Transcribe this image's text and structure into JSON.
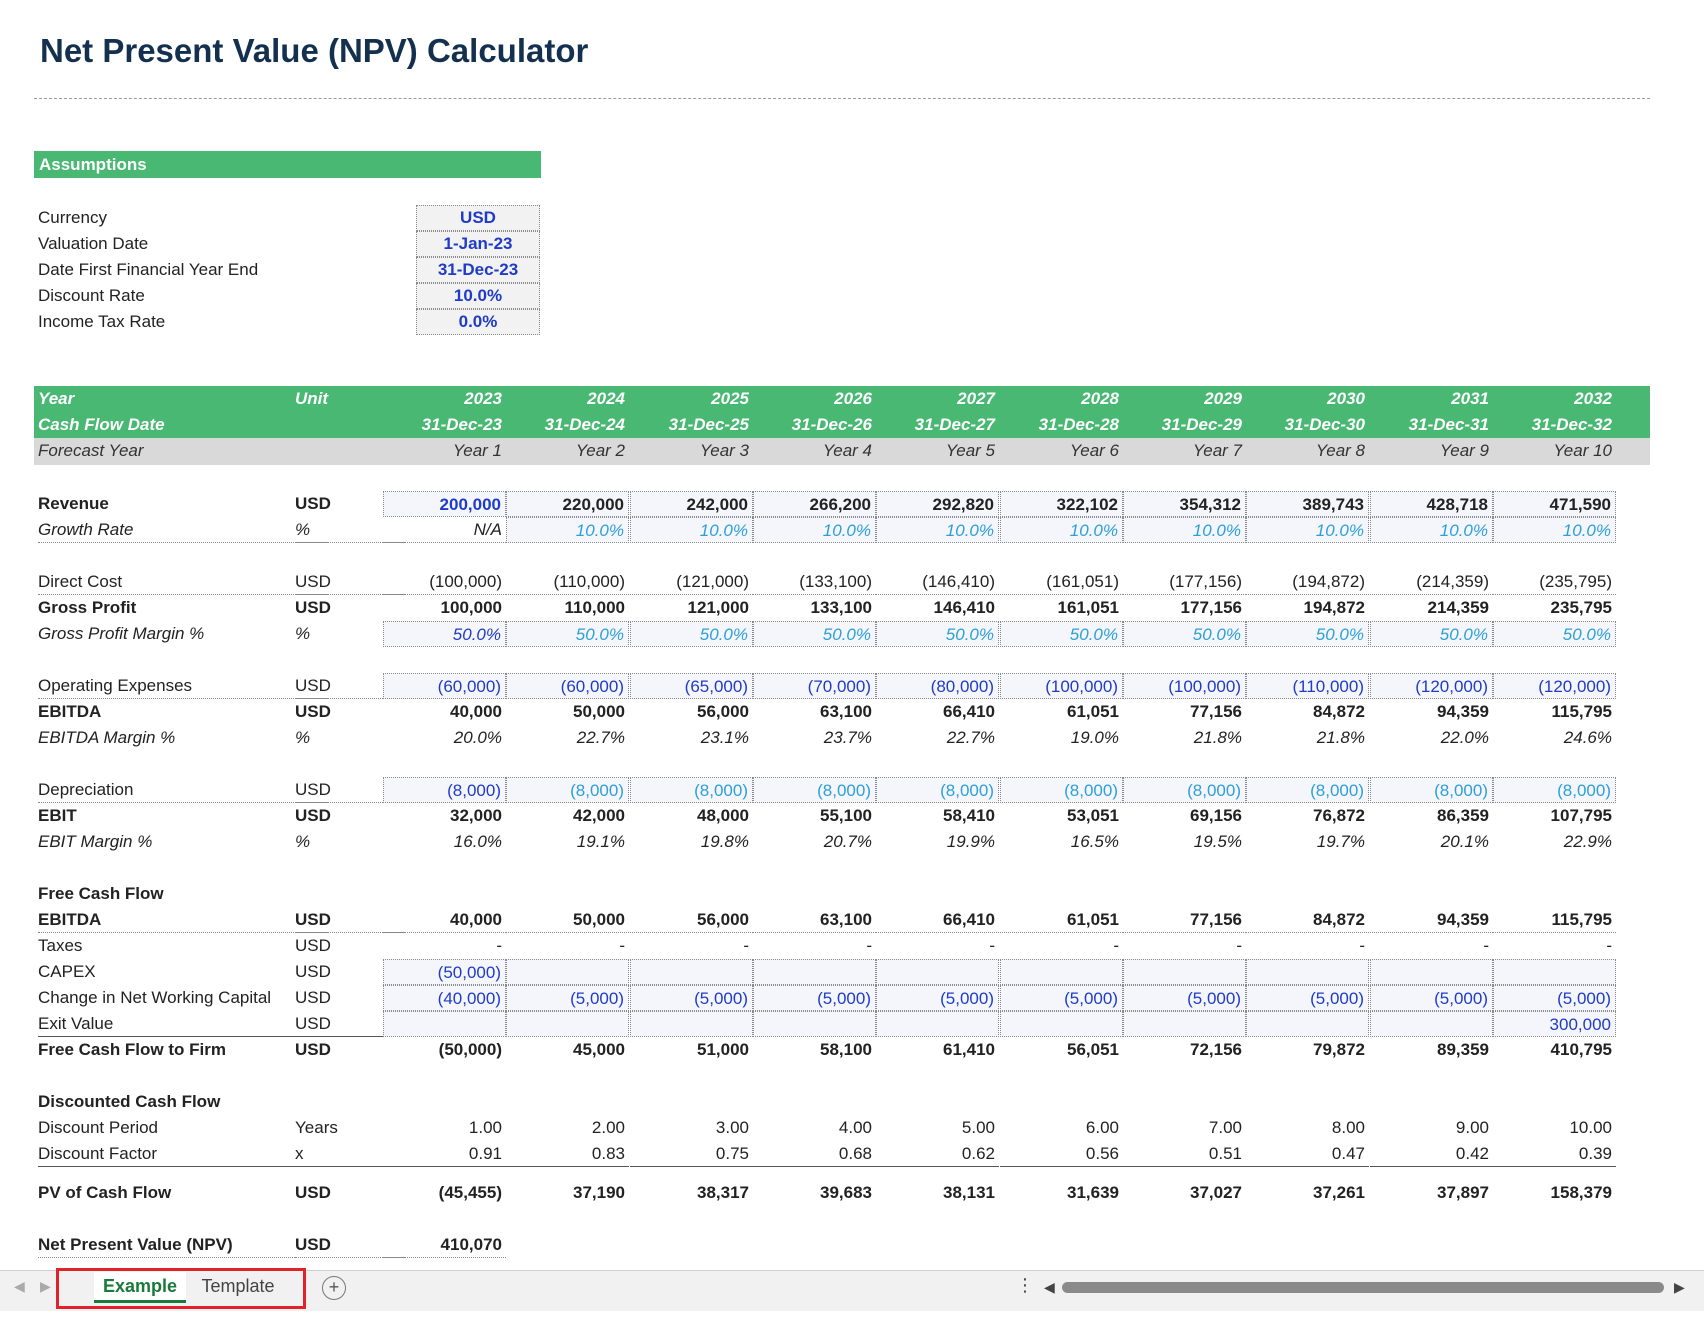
{
  "title": "Net Present Value (NPV) Calculator",
  "assumptions": {
    "header": "Assumptions",
    "items": [
      {
        "label": "Currency",
        "value": "USD"
      },
      {
        "label": "Valuation Date",
        "value": "1-Jan-23"
      },
      {
        "label": "Date First Financial Year End",
        "value": "31-Dec-23"
      },
      {
        "label": "Discount Rate",
        "value": "10.0%"
      },
      {
        "label": "Income Tax Rate",
        "value": "0.0%"
      }
    ]
  },
  "header_rows": [
    {
      "label": "Year",
      "unit": "Unit",
      "cells": [
        "2023",
        "2024",
        "2025",
        "2026",
        "2027",
        "2028",
        "2029",
        "2030",
        "2031",
        "2032"
      ]
    },
    {
      "label": "Cash Flow Date",
      "unit": "",
      "cells": [
        "31-Dec-23",
        "31-Dec-24",
        "31-Dec-25",
        "31-Dec-26",
        "31-Dec-27",
        "31-Dec-28",
        "31-Dec-29",
        "31-Dec-30",
        "31-Dec-31",
        "31-Dec-32"
      ]
    },
    {
      "label": "Forecast Year",
      "unit": "",
      "cells": [
        "Year 1",
        "Year 2",
        "Year 3",
        "Year 4",
        "Year 5",
        "Year 6",
        "Year 7",
        "Year 8",
        "Year 9",
        "Year 10"
      ]
    }
  ],
  "rows": [
    {
      "label": "Revenue",
      "unit": "USD",
      "cells": [
        "200,000",
        "220,000",
        "242,000",
        "266,200",
        "292,820",
        "322,102",
        "354,312",
        "389,743",
        "428,718",
        "471,590"
      ]
    },
    {
      "label": "Growth Rate",
      "unit": "%",
      "cells": [
        "N/A",
        "10.0%",
        "10.0%",
        "10.0%",
        "10.0%",
        "10.0%",
        "10.0%",
        "10.0%",
        "10.0%",
        "10.0%"
      ]
    },
    {
      "label": "Direct Cost",
      "unit": "USD",
      "cells": [
        "(100,000)",
        "(110,000)",
        "(121,000)",
        "(133,100)",
        "(146,410)",
        "(161,051)",
        "(177,156)",
        "(194,872)",
        "(214,359)",
        "(235,795)"
      ]
    },
    {
      "label": "Gross Profit",
      "unit": "USD",
      "cells": [
        "100,000",
        "110,000",
        "121,000",
        "133,100",
        "146,410",
        "161,051",
        "177,156",
        "194,872",
        "214,359",
        "235,795"
      ]
    },
    {
      "label": "Gross Profit Margin %",
      "unit": "%",
      "cells": [
        "50.0%",
        "50.0%",
        "50.0%",
        "50.0%",
        "50.0%",
        "50.0%",
        "50.0%",
        "50.0%",
        "50.0%",
        "50.0%"
      ]
    },
    {
      "label": "Operating Expenses",
      "unit": "USD",
      "cells": [
        "(60,000)",
        "(60,000)",
        "(65,000)",
        "(70,000)",
        "(80,000)",
        "(100,000)",
        "(100,000)",
        "(110,000)",
        "(120,000)",
        "(120,000)"
      ]
    },
    {
      "label": "EBITDA",
      "unit": "USD",
      "cells": [
        "40,000",
        "50,000",
        "56,000",
        "63,100",
        "66,410",
        "61,051",
        "77,156",
        "84,872",
        "94,359",
        "115,795"
      ]
    },
    {
      "label": "EBITDA Margin %",
      "unit": "%",
      "cells": [
        "20.0%",
        "22.7%",
        "23.1%",
        "23.7%",
        "22.7%",
        "19.0%",
        "21.8%",
        "21.8%",
        "22.0%",
        "24.6%"
      ]
    },
    {
      "label": "Depreciation",
      "unit": "USD",
      "cells": [
        "(8,000)",
        "(8,000)",
        "(8,000)",
        "(8,000)",
        "(8,000)",
        "(8,000)",
        "(8,000)",
        "(8,000)",
        "(8,000)",
        "(8,000)"
      ]
    },
    {
      "label": "EBIT",
      "unit": "USD",
      "cells": [
        "32,000",
        "42,000",
        "48,000",
        "55,100",
        "58,410",
        "53,051",
        "69,156",
        "76,872",
        "86,359",
        "107,795"
      ]
    },
    {
      "label": "EBIT Margin %",
      "unit": "%",
      "cells": [
        "16.0%",
        "19.1%",
        "19.8%",
        "20.7%",
        "19.9%",
        "16.5%",
        "19.5%",
        "19.7%",
        "20.1%",
        "22.9%"
      ]
    },
    {
      "label": "Free Cash Flow",
      "unit": "",
      "cells": [
        "",
        "",
        "",
        "",
        "",
        "",
        "",
        "",
        "",
        ""
      ]
    },
    {
      "label": "EBITDA",
      "unit": "USD",
      "cells": [
        "40,000",
        "50,000",
        "56,000",
        "63,100",
        "66,410",
        "61,051",
        "77,156",
        "84,872",
        "94,359",
        "115,795"
      ]
    },
    {
      "label": "Taxes",
      "unit": "USD",
      "cells": [
        "-",
        "-",
        "-",
        "-",
        "-",
        "-",
        "-",
        "-",
        "-",
        "-"
      ]
    },
    {
      "label": "CAPEX",
      "unit": "USD",
      "cells": [
        "(50,000)",
        "",
        "",
        "",
        "",
        "",
        "",
        "",
        "",
        ""
      ]
    },
    {
      "label": "Change in Net Working Capital",
      "unit": "USD",
      "cells": [
        "(40,000)",
        "(5,000)",
        "(5,000)",
        "(5,000)",
        "(5,000)",
        "(5,000)",
        "(5,000)",
        "(5,000)",
        "(5,000)",
        "(5,000)"
      ]
    },
    {
      "label": "Exit Value",
      "unit": "USD",
      "cells": [
        "",
        "",
        "",
        "",
        "",
        "",
        "",
        "",
        "",
        "300,000"
      ]
    },
    {
      "label": "Free Cash Flow to Firm",
      "unit": "USD",
      "cells": [
        "(50,000)",
        "45,000",
        "51,000",
        "58,100",
        "61,410",
        "56,051",
        "72,156",
        "79,872",
        "89,359",
        "410,795"
      ]
    },
    {
      "label": "Discounted Cash Flow",
      "unit": "",
      "cells": [
        "",
        "",
        "",
        "",
        "",
        "",
        "",
        "",
        "",
        ""
      ]
    },
    {
      "label": "Discount Period",
      "unit": "Years",
      "cells": [
        "1.00",
        "2.00",
        "3.00",
        "4.00",
        "5.00",
        "6.00",
        "7.00",
        "8.00",
        "9.00",
        "10.00"
      ]
    },
    {
      "label": "Discount Factor",
      "unit": "x",
      "cells": [
        "0.91",
        "0.83",
        "0.75",
        "0.68",
        "0.62",
        "0.56",
        "0.51",
        "0.47",
        "0.42",
        "0.39"
      ]
    },
    {
      "label": "PV of Cash Flow",
      "unit": "USD",
      "cells": [
        "(45,455)",
        "37,190",
        "38,317",
        "39,683",
        "38,131",
        "31,639",
        "37,027",
        "37,261",
        "37,897",
        "158,379"
      ]
    },
    {
      "label": "Net Present Value (NPV)",
      "unit": "USD",
      "cells": [
        "410,070"
      ]
    }
  ],
  "tabs": {
    "example": "Example",
    "template": "Template"
  },
  "icons": {
    "add": "plus-circle-icon",
    "more": "more-vertical-icon"
  }
}
